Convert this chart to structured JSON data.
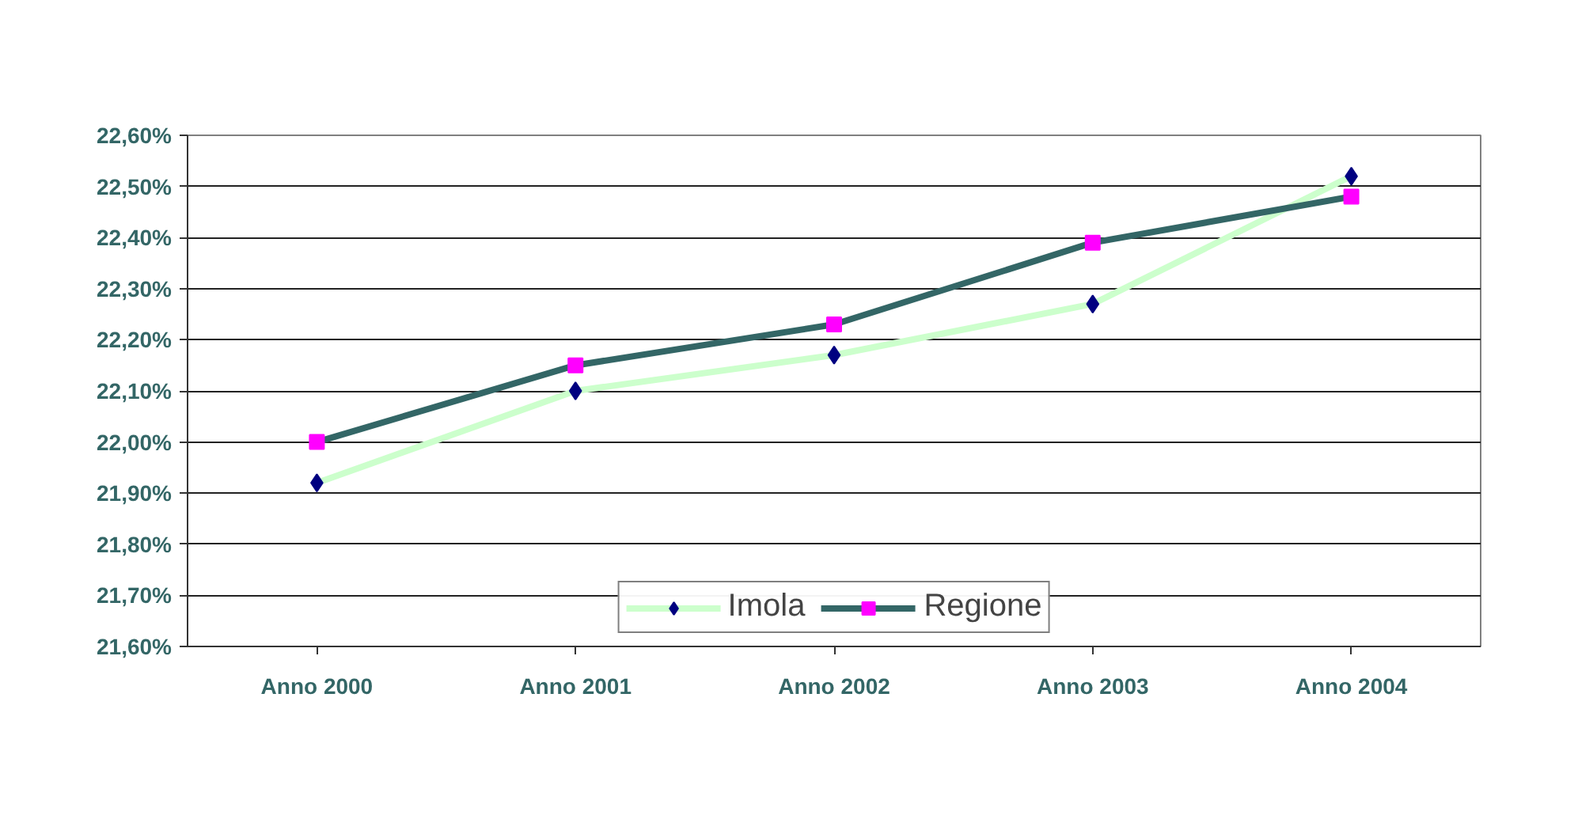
{
  "chart_data": {
    "type": "line",
    "categories": [
      "Anno 2000",
      "Anno 2001",
      "Anno 2002",
      "Anno 2003",
      "Anno 2004"
    ],
    "series": [
      {
        "name": "Imola",
        "color": "#ccffcc",
        "colors": [
          "#000080",
          "#000080",
          "#000080",
          "#000080",
          "#000080"
        ],
        "marker": "diamond",
        "values": [
          21.92,
          22.1,
          22.17,
          22.27,
          22.52
        ]
      },
      {
        "name": "Regione",
        "color": "#336666",
        "colors": [
          "#ff00ff",
          "#ff00ff",
          "#ff00ff",
          "#ff00ff",
          "#ff00ff"
        ],
        "marker": "square",
        "values": [
          22.0,
          22.15,
          22.23,
          22.39,
          22.48
        ]
      }
    ],
    "ylim": [
      21.6,
      22.6
    ],
    "yticks": [
      {
        "value": 21.6,
        "label": "21,60%"
      },
      {
        "value": 21.7,
        "label": "21,70%"
      },
      {
        "value": 21.8,
        "label": "21,80%"
      },
      {
        "value": 21.9,
        "label": "21,90%"
      },
      {
        "value": 22.0,
        "label": "22,00%"
      },
      {
        "value": 22.1,
        "label": "22,10%"
      },
      {
        "value": 22.2,
        "label": "22,20%"
      },
      {
        "value": 22.3,
        "label": "22,30%"
      },
      {
        "value": 22.4,
        "label": "22,40%"
      },
      {
        "value": 22.5,
        "label": "22,50%"
      },
      {
        "value": 22.6,
        "label": "22,60%"
      }
    ],
    "grid": "y",
    "legend": "bottom"
  }
}
